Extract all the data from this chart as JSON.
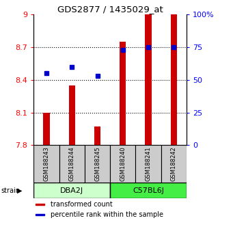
{
  "title": "GDS2877 / 1435029_at",
  "samples": [
    "GSM188243",
    "GSM188244",
    "GSM188245",
    "GSM188240",
    "GSM188241",
    "GSM188242"
  ],
  "bar_bottom": 7.8,
  "bar_values": [
    8.1,
    8.35,
    7.97,
    8.75,
    9.0,
    9.0
  ],
  "percentile_values": [
    55,
    60,
    53,
    73,
    75,
    75
  ],
  "ylim_left": [
    7.8,
    9.0
  ],
  "ylim_right": [
    0,
    100
  ],
  "yticks_left": [
    7.8,
    8.1,
    8.4,
    8.7,
    9
  ],
  "ytick_left_labels": [
    "7.8",
    "8.1",
    "8.4",
    "8.7",
    "9"
  ],
  "yticks_right": [
    0,
    25,
    50,
    75,
    100
  ],
  "ytick_right_labels": [
    "0",
    "25",
    "50",
    "75",
    "100%"
  ],
  "grid_lines": [
    8.1,
    8.4,
    8.7
  ],
  "bar_color": "#cc0000",
  "dot_color": "#0000cc",
  "sample_box_color": "#cccccc",
  "dba2j_color": "#ccffcc",
  "c57bl6j_color": "#44ee44",
  "legend_items": [
    {
      "color": "#cc0000",
      "label": "transformed count"
    },
    {
      "color": "#0000cc",
      "label": "percentile rank within the sample"
    }
  ],
  "bar_width": 0.25
}
